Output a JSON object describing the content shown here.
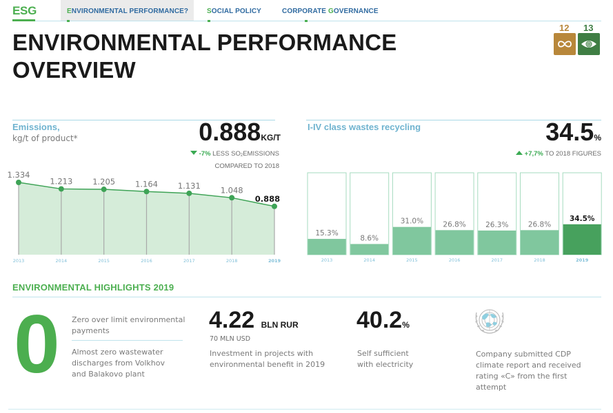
{
  "nav": {
    "logo": "ESG",
    "tabs": [
      {
        "first": "E",
        "rest": "NVIRONMENTAL PERFORMANCE?",
        "active": true
      },
      {
        "first": "S",
        "rest": "OCIAL POLICY",
        "active": false
      },
      {
        "pre": "CORPORATE ",
        "first": "G",
        "rest": "OVERNANCE",
        "active": false
      }
    ]
  },
  "sdg": [
    {
      "number": "12",
      "icon": "infinity-icon",
      "color": "#b8873a"
    },
    {
      "number": "13",
      "icon": "eye-globe-icon",
      "color": "#3f7e44"
    }
  ],
  "page_title": {
    "line1": "ENVIRONMENTAL PERFORMANCE",
    "line2": "OVERVIEW"
  },
  "emissions": {
    "title": "Emissions,",
    "subtitle": "kg/t of product*",
    "value": "0.888",
    "unit": "KG/T",
    "delta_value": "-7%",
    "delta_text_1": " LESS SO",
    "delta_sub": "2",
    "delta_text_2": "EMISSIONS",
    "delta_line2": "COMPARED TO 2018"
  },
  "recycling": {
    "title": "I-IV class wastes recycling",
    "value": "34.5",
    "unit": "%",
    "delta_value": "+7,7%",
    "delta_text": " TO 2018 FIGURES"
  },
  "chart_data": [
    {
      "type": "area",
      "title": "Emissions, kg/t of product*",
      "categories": [
        "2013",
        "2014",
        "2015",
        "2016",
        "2017",
        "2018",
        "2019"
      ],
      "values": [
        1.334,
        1.213,
        1.205,
        1.164,
        1.131,
        1.048,
        0.888
      ],
      "labels": [
        "1.334",
        "1.213",
        "1.205",
        "1.164",
        "1.131",
        "1.048",
        "0.888"
      ],
      "ylim": [
        0,
        1.334
      ],
      "highlight": "2019",
      "grid": false,
      "colors": {
        "line": "#3ea356",
        "fill": "#d5ecd9",
        "point": "#3ea356",
        "axis_label": "#7fbfd8"
      }
    },
    {
      "type": "bar",
      "title": "I-IV class wastes recycling",
      "categories": [
        "2013",
        "2014",
        "2015",
        "2016",
        "2017",
        "2018",
        "2019"
      ],
      "values": [
        15.3,
        8.6,
        31.0,
        26.8,
        26.3,
        26.8,
        34.5
      ],
      "labels": [
        "15.3%",
        "8.6%",
        "31.0%",
        "26.8%",
        "26.3%",
        "26.8%",
        "34.5%"
      ],
      "ylim": [
        0,
        100
      ],
      "highlight": "2019",
      "grid": false,
      "colors": {
        "bar": "#80c79e",
        "bar_highlight": "#47a15d",
        "frame": "#a6dbbf",
        "axis_label": "#7fbfd8"
      }
    }
  ],
  "highlights": {
    "title": "ENVIRONMENTAL HIGHLIGHTS 2019",
    "zero": "0",
    "zero_text_1": "Zero over limit environmental payments",
    "zero_text_2": "Almost zero wastewater discharges from Volkhov and Balakovo plant",
    "invest_value": "4.22",
    "invest_unit": "BLN RUR",
    "invest_usd": "70 MLN USD",
    "invest_text": "Investment in projects with environmental benefit in 2019",
    "self_value": "40.2",
    "self_unit": "%",
    "self_text": "Self sufficient with electricity",
    "cdp_icon": "un-emblem-icon",
    "cdp_text": "Company submitted CDP climate report and received rating «C» from the first attempt"
  }
}
